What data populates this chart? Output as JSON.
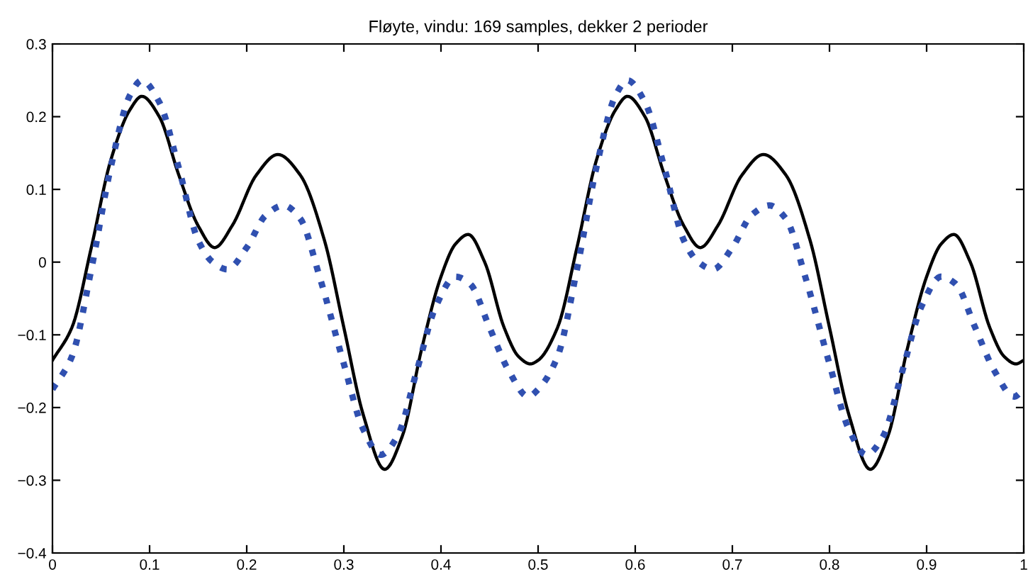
{
  "chart_data": {
    "type": "line",
    "title": "Fløyte, vindu: 169 samples, dekker 2 perioder",
    "xlim": [
      0,
      1
    ],
    "ylim": [
      -0.4,
      0.3
    ],
    "xticks": [
      0,
      0.1,
      0.2,
      0.3,
      0.4,
      0.5,
      0.6,
      0.7,
      0.8,
      0.9,
      1
    ],
    "yticks": [
      -0.4,
      -0.3,
      -0.2,
      -0.1,
      0,
      0.1,
      0.2,
      0.3
    ],
    "grid": false,
    "series": [
      {
        "color": "#000000",
        "line_style": "solid",
        "x": [
          0,
          0.02,
          0.04,
          0.06,
          0.08,
          0.092,
          0.11,
          0.13,
          0.15,
          0.167,
          0.185,
          0.21,
          0.232,
          0.255,
          0.28,
          0.3,
          0.32,
          0.342,
          0.36,
          0.38,
          0.4,
          0.415,
          0.428,
          0.445,
          0.465,
          0.48,
          0.492,
          0.5,
          0.52,
          0.54,
          0.56,
          0.58,
          0.592,
          0.61,
          0.63,
          0.65,
          0.667,
          0.685,
          0.71,
          0.732,
          0.755,
          0.78,
          0.8,
          0.82,
          0.842,
          0.86,
          0.88,
          0.9,
          0.915,
          0.928,
          0.945,
          0.965,
          0.98,
          0.992,
          1
        ],
        "values": [
          -0.135,
          -0.09,
          0.02,
          0.14,
          0.21,
          0.228,
          0.2,
          0.12,
          0.05,
          0.02,
          0.05,
          0.12,
          0.148,
          0.12,
          0.03,
          -0.09,
          -0.21,
          -0.285,
          -0.24,
          -0.12,
          -0.02,
          0.025,
          0.038,
          0.0,
          -0.09,
          -0.13,
          -0.14,
          -0.135,
          -0.09,
          0.02,
          0.14,
          0.21,
          0.228,
          0.2,
          0.12,
          0.05,
          0.02,
          0.05,
          0.12,
          0.148,
          0.12,
          0.03,
          -0.09,
          -0.21,
          -0.285,
          -0.24,
          -0.12,
          -0.02,
          0.025,
          0.038,
          0.0,
          -0.09,
          -0.13,
          -0.14,
          -0.135
        ]
      },
      {
        "color": "#3050b0",
        "line_style": "dotted",
        "x": [
          0,
          0.02,
          0.04,
          0.06,
          0.08,
          0.092,
          0.11,
          0.13,
          0.15,
          0.165,
          0.18,
          0.2,
          0.22,
          0.238,
          0.255,
          0.275,
          0.3,
          0.32,
          0.338,
          0.355,
          0.375,
          0.395,
          0.415,
          0.43,
          0.45,
          0.47,
          0.49,
          0.5,
          0.52,
          0.54,
          0.56,
          0.58,
          0.592,
          0.61,
          0.63,
          0.65,
          0.665,
          0.68,
          0.7,
          0.72,
          0.738,
          0.755,
          0.775,
          0.8,
          0.82,
          0.838,
          0.855,
          0.875,
          0.895,
          0.915,
          0.93,
          0.95,
          0.97,
          0.99,
          1
        ],
        "values": [
          -0.175,
          -0.13,
          -0.01,
          0.13,
          0.23,
          0.25,
          0.22,
          0.13,
          0.03,
          0.0,
          -0.01,
          0.02,
          0.065,
          0.078,
          0.06,
          -0.02,
          -0.14,
          -0.23,
          -0.265,
          -0.24,
          -0.15,
          -0.06,
          -0.02,
          -0.03,
          -0.09,
          -0.15,
          -0.185,
          -0.175,
          -0.13,
          -0.01,
          0.13,
          0.23,
          0.25,
          0.22,
          0.13,
          0.03,
          0.0,
          -0.01,
          0.02,
          0.065,
          0.078,
          0.06,
          -0.02,
          -0.14,
          -0.23,
          -0.265,
          -0.24,
          -0.15,
          -0.06,
          -0.02,
          -0.03,
          -0.09,
          -0.15,
          -0.185,
          -0.175
        ]
      }
    ]
  }
}
